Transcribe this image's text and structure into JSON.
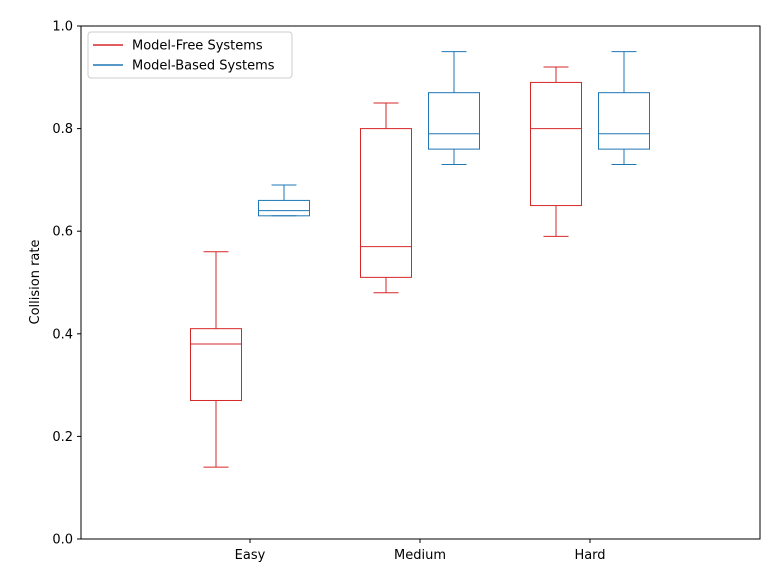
{
  "chart_data": {
    "type": "box",
    "title": "",
    "xlabel": "",
    "ylabel": "Collision rate",
    "ylim": [
      0.0,
      1.0
    ],
    "yticks": [
      "0.0",
      "0.2",
      "0.4",
      "0.6",
      "0.8",
      "1.0"
    ],
    "categories": [
      "Easy",
      "Medium",
      "Hard"
    ],
    "grid": false,
    "legend_position": "top-left",
    "series": [
      {
        "name": "Model-Free Systems",
        "color": "#d62728",
        "boxes": [
          {
            "whislo": 0.14,
            "q1": 0.27,
            "med": 0.38,
            "q3": 0.41,
            "whishi": 0.56
          },
          {
            "whislo": 0.48,
            "q1": 0.51,
            "med": 0.57,
            "q3": 0.8,
            "whishi": 0.85
          },
          {
            "whislo": 0.59,
            "q1": 0.65,
            "med": 0.8,
            "q3": 0.89,
            "whishi": 0.92
          }
        ]
      },
      {
        "name": "Model-Based Systems",
        "color": "#1f77b4",
        "boxes": [
          {
            "whislo": 0.63,
            "q1": 0.63,
            "med": 0.64,
            "q3": 0.66,
            "whishi": 0.69
          },
          {
            "whislo": 0.73,
            "q1": 0.76,
            "med": 0.79,
            "q3": 0.87,
            "whishi": 0.95
          },
          {
            "whislo": 0.73,
            "q1": 0.76,
            "med": 0.79,
            "q3": 0.87,
            "whishi": 0.95
          }
        ]
      }
    ]
  }
}
